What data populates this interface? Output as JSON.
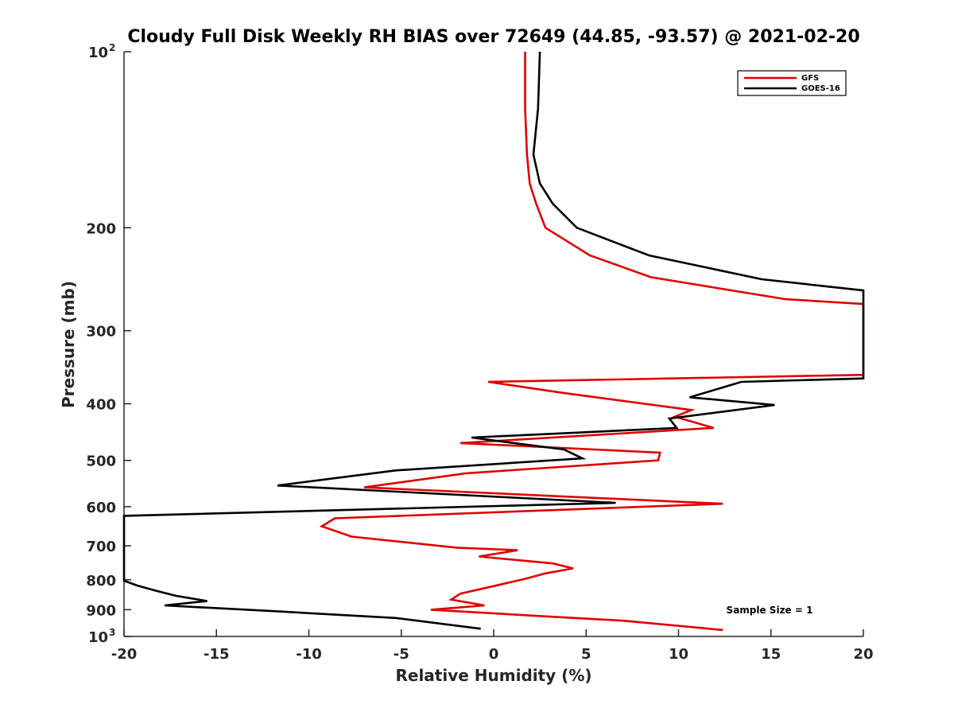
{
  "chart_data": {
    "type": "line",
    "title": "Cloudy Full Disk Weekly RH BIAS over 72649 (44.85, -93.57) @ 2021-02-20",
    "xlabel": "Relative Humidity (%)",
    "ylabel": "Pressure (mb)",
    "xlim": [
      -20,
      20
    ],
    "ylim": [
      100,
      1000
    ],
    "yscale": "log",
    "y_reversed": true,
    "grid": false,
    "legend_position": "top-right",
    "annotation": "Sample Size = 1",
    "x_ticks": [
      {
        "value": -20,
        "label": "-20"
      },
      {
        "value": -15,
        "label": "-15"
      },
      {
        "value": -10,
        "label": "-10"
      },
      {
        "value": -5,
        "label": "-5"
      },
      {
        "value": 0,
        "label": "0"
      },
      {
        "value": 5,
        "label": "5"
      },
      {
        "value": 10,
        "label": "10"
      },
      {
        "value": 15,
        "label": "15"
      },
      {
        "value": 20,
        "label": "20"
      }
    ],
    "y_ticks": [
      {
        "value": 100,
        "base": "10",
        "exp": "2"
      },
      {
        "value": 200,
        "base": "200",
        "exp": ""
      },
      {
        "value": 300,
        "base": "300",
        "exp": ""
      },
      {
        "value": 400,
        "base": "400",
        "exp": ""
      },
      {
        "value": 500,
        "base": "500",
        "exp": ""
      },
      {
        "value": 600,
        "base": "600",
        "exp": ""
      },
      {
        "value": 700,
        "base": "700",
        "exp": ""
      },
      {
        "value": 800,
        "base": "800",
        "exp": ""
      },
      {
        "value": 900,
        "base": "900",
        "exp": ""
      },
      {
        "value": 1000,
        "base": "10",
        "exp": "3"
      }
    ],
    "series": [
      {
        "name": "GFS",
        "color": "#e00000",
        "points": [
          [
            1.7,
            100
          ],
          [
            1.7,
            125
          ],
          [
            1.8,
            150
          ],
          [
            1.95,
            168
          ],
          [
            2.3,
            182
          ],
          [
            2.8,
            200
          ],
          [
            5.2,
            223
          ],
          [
            8.5,
            243
          ],
          [
            15.8,
            265
          ],
          [
            20,
            270
          ],
          [
            20,
            357
          ],
          [
            -0.3,
            367
          ],
          [
            3.7,
            383
          ],
          [
            10.7,
            410
          ],
          [
            9.8,
            421
          ],
          [
            11.9,
            440
          ],
          [
            -1.8,
            467
          ],
          [
            9.0,
            485
          ],
          [
            8.9,
            500
          ],
          [
            -1.5,
            526
          ],
          [
            -7.0,
            556
          ],
          [
            12.4,
            593
          ],
          [
            -8.6,
            628
          ],
          [
            -9.3,
            648
          ],
          [
            -7.7,
            675
          ],
          [
            -2.0,
            705
          ],
          [
            1.3,
            712
          ],
          [
            -0.8,
            730
          ],
          [
            3.2,
            750
          ],
          [
            4.3,
            765
          ],
          [
            2.8,
            780
          ],
          [
            1.7,
            797
          ],
          [
            0.0,
            820
          ],
          [
            -1.8,
            845
          ],
          [
            -2.3,
            865
          ],
          [
            -0.5,
            885
          ],
          [
            -3.4,
            900
          ],
          [
            1.8,
            920
          ],
          [
            7.0,
            940
          ],
          [
            12.4,
            975
          ]
        ]
      },
      {
        "name": "GOES-16",
        "color": "#000000",
        "points": [
          [
            2.5,
            100
          ],
          [
            2.4,
            125
          ],
          [
            2.15,
            150
          ],
          [
            2.5,
            168
          ],
          [
            3.2,
            182
          ],
          [
            4.5,
            200
          ],
          [
            8.4,
            223
          ],
          [
            14.5,
            245
          ],
          [
            20,
            256
          ],
          [
            20,
            362
          ],
          [
            13.4,
            367
          ],
          [
            10.6,
            390
          ],
          [
            15.2,
            402
          ],
          [
            9.5,
            424
          ],
          [
            9.9,
            440
          ],
          [
            -1.2,
            457
          ],
          [
            3.8,
            479
          ],
          [
            4.8,
            496
          ],
          [
            -5.3,
            520
          ],
          [
            -11.7,
            552
          ],
          [
            6.6,
            591
          ],
          [
            -20.0,
            622
          ],
          [
            -20.0,
            803
          ],
          [
            -19.3,
            818
          ],
          [
            -18.3,
            835
          ],
          [
            -17.2,
            852
          ],
          [
            -15.5,
            870
          ],
          [
            -17.8,
            885
          ],
          [
            -12.0,
            905
          ],
          [
            -5.3,
            930
          ],
          [
            -0.7,
            970
          ]
        ]
      }
    ]
  }
}
